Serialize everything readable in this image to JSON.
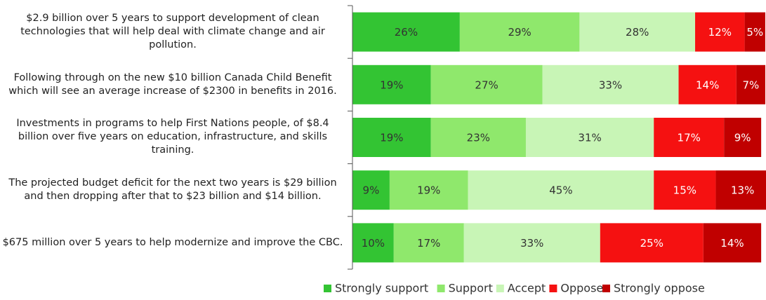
{
  "chart_data": {
    "type": "stacked-bar-horizontal",
    "categories": [
      "$2.9 billion over 5 years  to support development of clean technologies that will help deal with climate change  and air pollution.",
      "Following through on the new $10 billion Canada Child Benefit which will see an average increase of $2300 in benefits in 2016.",
      "Investments in programs to help First Nations people, of $8.4 billion over five years on education, infrastructure, and skills training.",
      "The projected budget deficit for the next two years is $29 billion and then dropping after that to $23 billion and $14 billion.",
      "$675 million over 5 years to help modernize and improve the CBC."
    ],
    "series": [
      {
        "name": "Strongly support",
        "color": "#33c433",
        "values": [
          26,
          19,
          19,
          9,
          10
        ],
        "value_labels": [
          "26%",
          "19%",
          "19%",
          "9%",
          "10%"
        ]
      },
      {
        "name": "Support",
        "color": "#8fe86c",
        "values": [
          29,
          27,
          23,
          19,
          17
        ],
        "value_labels": [
          "29%",
          "27%",
          "23%",
          "19%",
          "17%"
        ]
      },
      {
        "name": "Accept",
        "color": "#c8f5b6",
        "values": [
          28,
          33,
          31,
          45,
          33
        ],
        "value_labels": [
          "28%",
          "33%",
          "31%",
          "45%",
          "33%"
        ]
      },
      {
        "name": "Oppose",
        "color": "#f51111",
        "values": [
          12,
          14,
          17,
          15,
          25
        ],
        "value_labels": [
          "12%",
          "14%",
          "17%",
          "15%",
          "25%"
        ]
      },
      {
        "name": "Strongly oppose",
        "color": "#c00000",
        "values": [
          5,
          7,
          9,
          13,
          14
        ],
        "value_labels": [
          "5%",
          "7%",
          "9%",
          "13%",
          "14%"
        ]
      }
    ],
    "xlim": [
      0,
      100
    ]
  }
}
